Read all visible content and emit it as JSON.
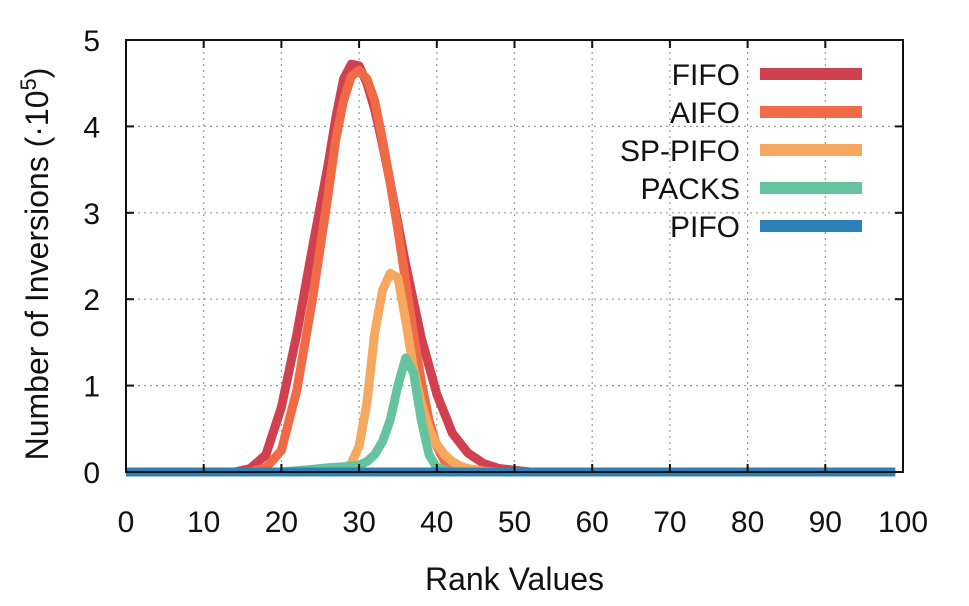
{
  "chart_data": {
    "type": "line",
    "title": "",
    "xlabel": "Rank Values",
    "ylabel": "Number of Inversions (·10",
    "ylabel_exponent": "5",
    "ylabel_close": ")",
    "xlim": [
      0,
      100
    ],
    "ylim": [
      0,
      5
    ],
    "xticks": [
      0,
      10,
      20,
      30,
      40,
      50,
      60,
      70,
      80,
      90,
      100
    ],
    "yticks": [
      0,
      1,
      2,
      3,
      4,
      5
    ],
    "grid": true,
    "legend_position": "top-right",
    "series": [
      {
        "name": "FIFO",
        "color": "#d1404f",
        "x": [
          0,
          14,
          16,
          18,
          20,
          22,
          24,
          26,
          27,
          28,
          29,
          30,
          31,
          32,
          33,
          34,
          36,
          38,
          40,
          42,
          44,
          46,
          48,
          50,
          52,
          55,
          99
        ],
        "y": [
          0,
          0,
          0.04,
          0.2,
          0.75,
          1.6,
          2.6,
          3.55,
          4.1,
          4.55,
          4.72,
          4.7,
          4.5,
          4.2,
          3.8,
          3.35,
          2.4,
          1.55,
          0.9,
          0.45,
          0.22,
          0.1,
          0.04,
          0.02,
          0,
          0,
          0
        ]
      },
      {
        "name": "AIFO",
        "color": "#f06b45",
        "x": [
          0,
          16,
          18,
          20,
          22,
          24,
          26,
          27,
          28,
          29,
          30,
          31,
          32,
          33,
          34,
          35,
          36,
          37,
          38,
          39,
          40,
          41,
          42,
          43,
          44,
          99
        ],
        "y": [
          0,
          0,
          0.05,
          0.25,
          0.95,
          2.0,
          3.2,
          3.85,
          4.3,
          4.58,
          4.65,
          4.55,
          4.3,
          3.85,
          3.35,
          2.8,
          2.2,
          1.6,
          1.05,
          0.6,
          0.3,
          0.12,
          0.04,
          0.01,
          0,
          0
        ]
      },
      {
        "name": "SP-PIFO",
        "color": "#f6a95e",
        "x": [
          0,
          26,
          28,
          29,
          30,
          31,
          32,
          33,
          34,
          35,
          36,
          37,
          38,
          39,
          40,
          41,
          42,
          43,
          44,
          46,
          48,
          99
        ],
        "y": [
          0,
          0,
          0.03,
          0.1,
          0.3,
          0.8,
          1.6,
          2.1,
          2.3,
          2.25,
          1.75,
          1.2,
          0.8,
          0.5,
          0.32,
          0.2,
          0.12,
          0.07,
          0.04,
          0.01,
          0,
          0
        ]
      },
      {
        "name": "PACKS",
        "color": "#66c3a0",
        "x": [
          0,
          20,
          24,
          26,
          28,
          30,
          31,
          32,
          33,
          34,
          35,
          36,
          37,
          38,
          39,
          40,
          42,
          99
        ],
        "y": [
          0,
          0,
          0.03,
          0.05,
          0.06,
          0.08,
          0.12,
          0.2,
          0.35,
          0.6,
          1.0,
          1.32,
          1.15,
          0.6,
          0.2,
          0.05,
          0,
          0
        ]
      },
      {
        "name": "PIFO",
        "color": "#2d80b8",
        "x": [
          0,
          99
        ],
        "y": [
          0,
          0
        ]
      }
    ]
  }
}
